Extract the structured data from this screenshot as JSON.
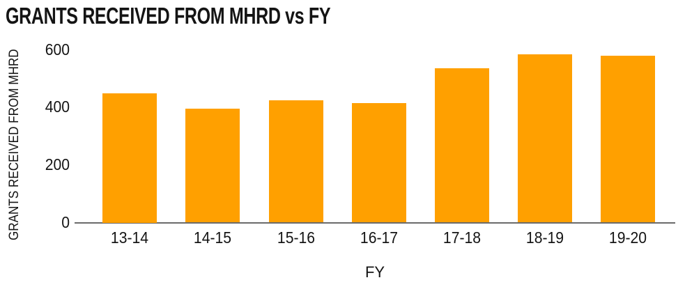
{
  "chart_data": {
    "type": "bar",
    "title": "GRANTS RECEIVED FROM MHRD vs FY",
    "categories": [
      "13-14",
      "14-15",
      "15-16",
      "16-17",
      "17-18",
      "18-19",
      "19-20"
    ],
    "values": [
      450,
      395,
      425,
      415,
      535,
      585,
      580
    ],
    "xlabel": "FY",
    "ylabel": "GRANTS RECEIVED FROM MHRD",
    "yticks": [
      0,
      200,
      400,
      600
    ],
    "ylim": [
      0,
      600
    ],
    "grid": false,
    "legend": false,
    "bar_color": "#FFA000",
    "axis_line_color": "#6B6B6B",
    "text_color": "#141414",
    "background_color": "#FFFFFF"
  }
}
